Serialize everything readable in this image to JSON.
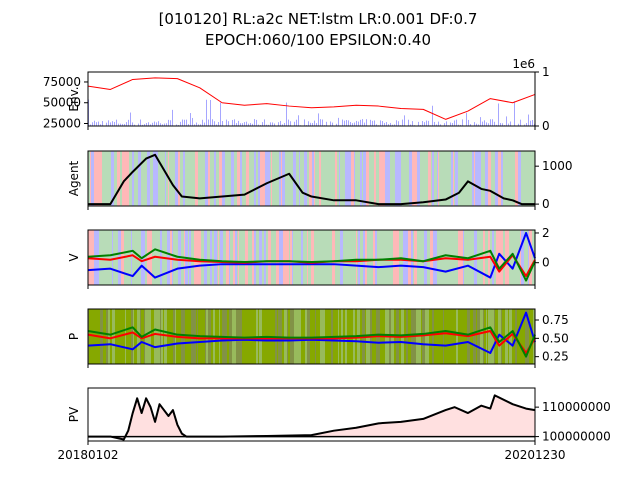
{
  "figure": {
    "title_line1": "[010120] RL:a2c NET:lstm LR:0.001 DF:0.7",
    "title_line2": "EPOCH:060/100 EPSILON:0.40"
  },
  "colors": {
    "up": "#ff0000",
    "down": "#0000ff",
    "volume": "#0000ff",
    "agent": "#000000",
    "buy": "#ff0000",
    "sell": "#0000ff",
    "hold": "#008000",
    "exploration": "#808080",
    "pv_line": "#000000",
    "pv_fill": "#ffcccc",
    "p_background": "#86a800"
  },
  "chart_data": [
    {
      "type": "line",
      "ylabel": "Env.",
      "yticks": [
        "25000",
        "50000",
        "75000"
      ],
      "y2ticks": [
        "0",
        "1"
      ],
      "y2_offset_label": "1e6",
      "ylim": [
        22000,
        87000
      ],
      "series": [
        {
          "x": [
            0,
            5,
            10,
            15,
            20,
            25,
            30,
            35,
            40,
            45,
            50,
            55,
            60,
            65,
            70,
            75,
            80,
            85,
            90,
            95,
            100
          ],
          "values": [
            70000,
            66000,
            78000,
            80000,
            79000,
            68000,
            50000,
            47000,
            49000,
            46000,
            44000,
            45000,
            47000,
            46000,
            43000,
            42000,
            30000,
            40000,
            55000,
            50000,
            60000
          ]
        }
      ]
    },
    {
      "type": "line",
      "ylabel": "Agent",
      "yticks": [
        "0",
        "1000"
      ],
      "ylim": [
        -50,
        1400
      ],
      "series": [
        {
          "x": [
            0,
            5,
            8,
            10,
            13,
            15,
            19,
            21,
            25,
            30,
            35,
            40,
            45,
            48,
            50,
            55,
            60,
            65,
            70,
            75,
            80,
            83,
            85,
            88,
            90,
            93,
            95,
            97,
            100
          ],
          "values": [
            0,
            0,
            600,
            850,
            1200,
            1300,
            500,
            200,
            150,
            200,
            250,
            550,
            800,
            300,
            200,
            100,
            100,
            0,
            0,
            50,
            120,
            300,
            600,
            400,
            350,
            150,
            100,
            0,
            0
          ]
        }
      ]
    },
    {
      "type": "line",
      "ylabel": "V",
      "yticks": [
        "0",
        "2"
      ],
      "ylim": [
        -1.5,
        2.2
      ],
      "series": [
        {
          "x": [
            0,
            5,
            10,
            12,
            15,
            20,
            25,
            30,
            35,
            40,
            45,
            50,
            55,
            60,
            65,
            70,
            75,
            80,
            85,
            90,
            92,
            95,
            98,
            100
          ],
          "values": [
            -0.5,
            -0.4,
            -0.9,
            -0.2,
            -1.0,
            -0.4,
            -0.2,
            -0.1,
            -0.1,
            -0.1,
            -0.1,
            -0.1,
            -0.1,
            -0.2,
            -0.3,
            -0.2,
            -0.3,
            -0.6,
            -0.2,
            -1.0,
            0.6,
            -0.4,
            2.0,
            0.3
          ]
        },
        {
          "x": [
            0,
            5,
            10,
            12,
            15,
            20,
            25,
            30,
            35,
            40,
            45,
            50,
            55,
            60,
            65,
            70,
            75,
            80,
            85,
            90,
            92,
            95,
            98,
            100
          ],
          "values": [
            0.3,
            0.2,
            0.5,
            0.1,
            0.4,
            0.2,
            0.1,
            0.05,
            0.0,
            0.1,
            0.1,
            0.0,
            0.1,
            0.1,
            0.2,
            0.2,
            0.1,
            0.3,
            0.2,
            0.4,
            -0.6,
            0.5,
            -0.9,
            0.2
          ]
        },
        {
          "x": [
            0,
            5,
            10,
            12,
            15,
            20,
            25,
            30,
            35,
            40,
            45,
            50,
            55,
            60,
            65,
            70,
            75,
            80,
            85,
            90,
            92,
            95,
            98,
            100
          ],
          "values": [
            0.4,
            0.5,
            0.8,
            0.3,
            0.9,
            0.4,
            0.2,
            0.1,
            0.05,
            0.1,
            0.1,
            0.05,
            0.1,
            0.2,
            0.2,
            0.3,
            0.1,
            0.5,
            0.3,
            0.8,
            -0.4,
            0.6,
            -1.2,
            0.1
          ]
        }
      ]
    },
    {
      "type": "line",
      "ylabel": "P",
      "yticks": [
        "0.25",
        "0.50",
        "0.75"
      ],
      "ylim": [
        0.15,
        0.9
      ],
      "series": [
        {
          "x": [
            0,
            5,
            10,
            12,
            15,
            20,
            25,
            30,
            35,
            40,
            45,
            50,
            55,
            60,
            65,
            70,
            75,
            80,
            85,
            90,
            92,
            95,
            98,
            100
          ],
          "values": [
            0.4,
            0.42,
            0.35,
            0.45,
            0.38,
            0.43,
            0.45,
            0.47,
            0.48,
            0.47,
            0.47,
            0.48,
            0.47,
            0.46,
            0.44,
            0.45,
            0.42,
            0.4,
            0.45,
            0.3,
            0.55,
            0.4,
            0.85,
            0.45
          ]
        },
        {
          "x": [
            0,
            5,
            10,
            12,
            15,
            20,
            25,
            30,
            35,
            40,
            45,
            50,
            55,
            60,
            65,
            70,
            75,
            80,
            85,
            90,
            92,
            95,
            98,
            100
          ],
          "values": [
            0.55,
            0.5,
            0.58,
            0.5,
            0.56,
            0.52,
            0.5,
            0.5,
            0.5,
            0.5,
            0.5,
            0.5,
            0.5,
            0.51,
            0.53,
            0.52,
            0.54,
            0.57,
            0.53,
            0.6,
            0.4,
            0.56,
            0.3,
            0.5
          ]
        },
        {
          "x": [
            0,
            5,
            10,
            12,
            15,
            20,
            25,
            30,
            35,
            40,
            45,
            50,
            55,
            60,
            65,
            70,
            75,
            80,
            85,
            90,
            92,
            95,
            98,
            100
          ],
          "values": [
            0.6,
            0.55,
            0.65,
            0.52,
            0.62,
            0.55,
            0.53,
            0.52,
            0.51,
            0.52,
            0.51,
            0.51,
            0.52,
            0.53,
            0.55,
            0.54,
            0.56,
            0.6,
            0.55,
            0.65,
            0.45,
            0.6,
            0.25,
            0.55
          ]
        }
      ]
    },
    {
      "type": "area",
      "ylabel": "PV",
      "yticks": [
        "100000000",
        "110000000"
      ],
      "ylim": [
        98500000,
        116500000
      ],
      "baseline": 100000000,
      "series": [
        {
          "x": [
            0,
            5,
            8,
            9,
            10,
            11,
            12,
            13,
            14,
            15,
            16,
            18,
            19,
            20,
            21,
            22,
            30,
            40,
            50,
            55,
            60,
            65,
            70,
            75,
            80,
            82,
            85,
            88,
            90,
            91,
            95,
            98,
            100
          ],
          "values": [
            100000000,
            100000000,
            99000000,
            102000000,
            108000000,
            113000000,
            108000000,
            113000000,
            110000000,
            105000000,
            111000000,
            107000000,
            109000000,
            104000000,
            101000000,
            100000000,
            100000000,
            100200000,
            100500000,
            102000000,
            103000000,
            104500000,
            105000000,
            106000000,
            109000000,
            110000000,
            108000000,
            110500000,
            109500000,
            114000000,
            111000000,
            109500000,
            109000000
          ]
        }
      ]
    }
  ],
  "xaxis": {
    "first_label": "20180102",
    "last_label": "20201230"
  }
}
